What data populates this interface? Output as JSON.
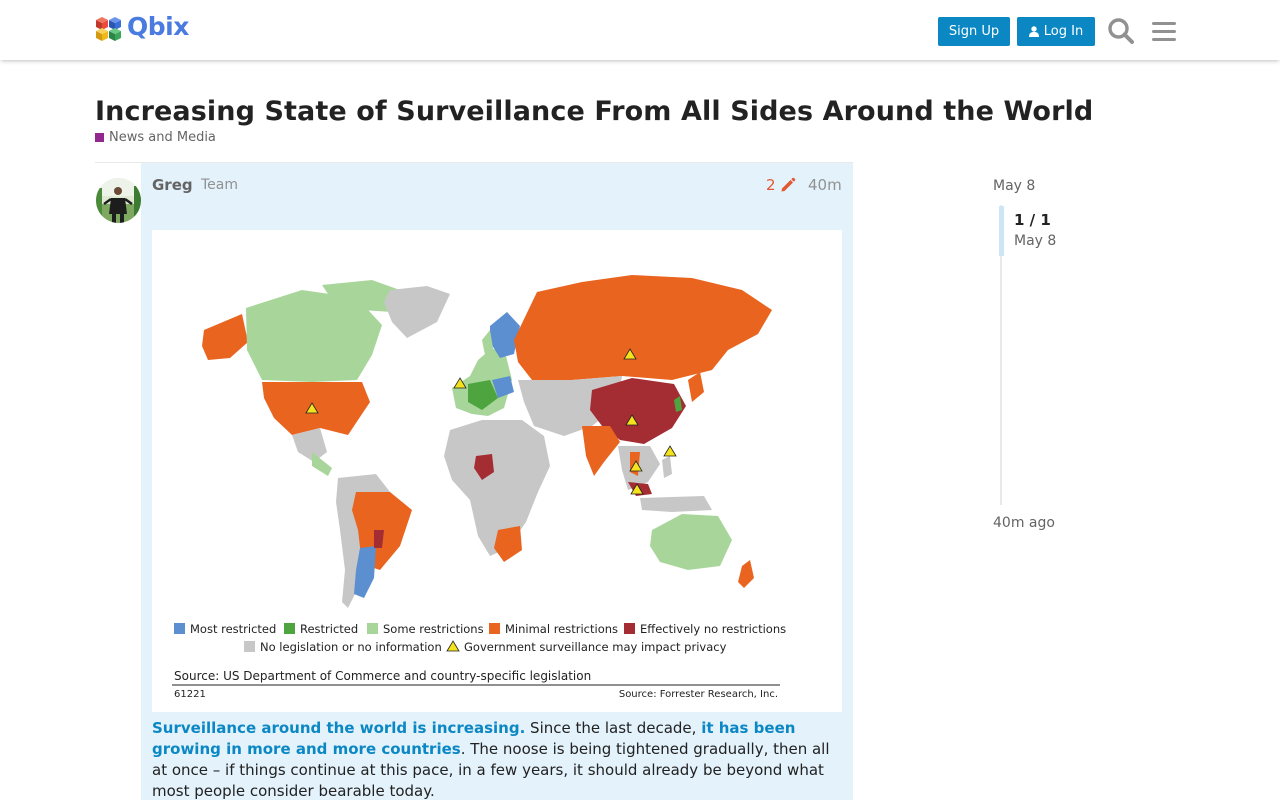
{
  "header": {
    "logo_text": "Qbix",
    "signup_label": "Sign Up",
    "login_label": "Log In",
    "icons": [
      "search-icon",
      "hamburger-menu-icon"
    ]
  },
  "topic": {
    "title": "Increasing State of Surveillance From All Sides Around the World",
    "category": "News and Media",
    "category_color": "#92278f"
  },
  "post": {
    "username": "Greg",
    "user_title": "Team",
    "edit_count": "2",
    "age": "40m",
    "image": {
      "legend": [
        {
          "label": "Most restricted",
          "color": "#5b8fd0"
        },
        {
          "label": "Restricted",
          "color": "#4ea43f"
        },
        {
          "label": "Some restrictions",
          "color": "#a8d69a"
        },
        {
          "label": "Minimal restrictions",
          "color": "#e9641e"
        },
        {
          "label": "Effectively no restrictions",
          "color": "#a32d33"
        },
        {
          "label": "No legislation or no information",
          "color": "#c7c7c7"
        },
        {
          "label": "Government surveillance may impact privacy",
          "color": "#f4e21c"
        }
      ],
      "source_left": "Source: US Department of Commerce and country-specific legislation",
      "code": "61221",
      "source_right": "Source: Forrester Research, Inc."
    },
    "text": {
      "link1": "Surveillance around the world is increasing.",
      "part1": " Since the last decade, ",
      "link2": "it has been growing in more and more countries",
      "part2": ". The noose is being tightened gradually, then all at once – if things continue at this pace, in a few years, it should already be beyond what most people consider bearable today."
    }
  },
  "timeline": {
    "top_date": "May 8",
    "count": "1 / 1",
    "count_date": "May 8",
    "bottom": "40m ago"
  },
  "colors": {
    "accent": "#0b87c4",
    "post_highlight": "#e3f2fb",
    "edit_icon": "#e45735"
  }
}
